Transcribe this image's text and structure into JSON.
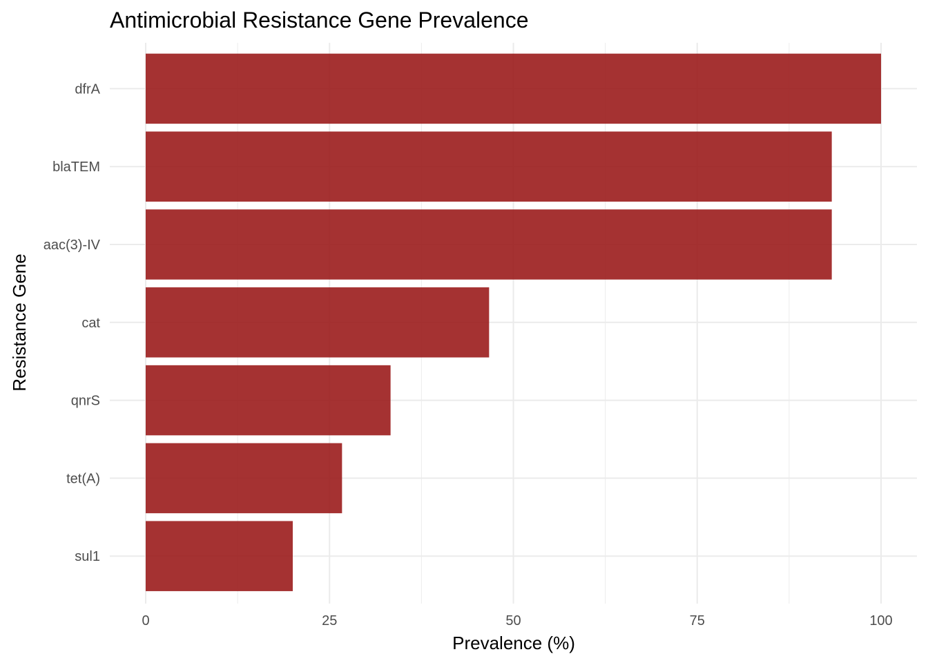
{
  "chart_data": {
    "type": "bar",
    "orientation": "horizontal",
    "title": "Antimicrobial Resistance Gene Prevalence",
    "xlabel": "Prevalence (%)",
    "ylabel": "Resistance Gene",
    "categories": [
      "dfrA",
      "blaTEM",
      "aac(3)-IV",
      "cat",
      "qnrS",
      "tet(A)",
      "sul1"
    ],
    "values": [
      100,
      93.3,
      93.3,
      46.7,
      33.3,
      26.7,
      20
    ],
    "xlim": [
      0,
      100
    ],
    "xticks": [
      0,
      25,
      50,
      75,
      100
    ],
    "grid": true,
    "legend": "none",
    "bar_color": "#9b1c1c"
  }
}
